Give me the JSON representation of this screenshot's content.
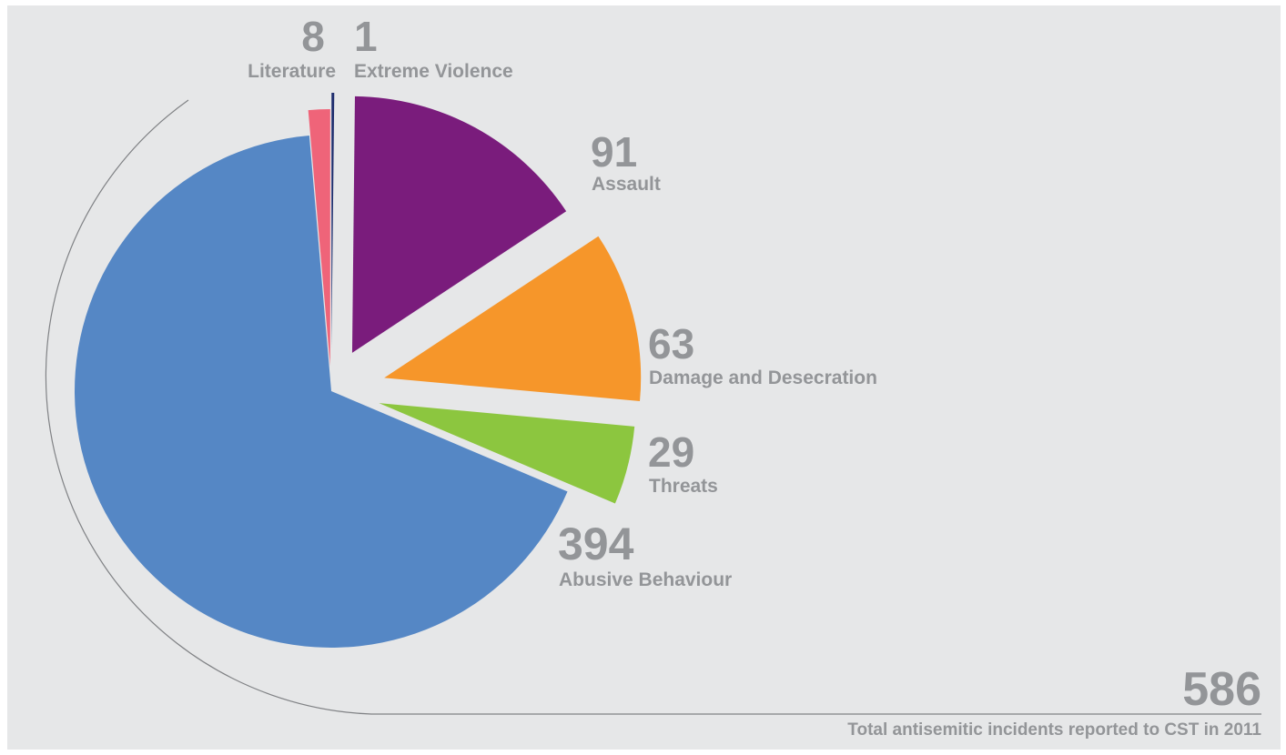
{
  "chart_data": {
    "type": "pie",
    "title": "",
    "slices": [
      {
        "label": "Extreme Violence",
        "value": 1,
        "color": "#1f2e6e"
      },
      {
        "label": "Assault",
        "value": 91,
        "color": "#7a1c7c"
      },
      {
        "label": "Damage and Desecration",
        "value": 63,
        "color": "#f6962a"
      },
      {
        "label": "Threats",
        "value": 29,
        "color": "#8cc63f"
      },
      {
        "label": "Abusive Behaviour",
        "value": 394,
        "color": "#5587c5"
      },
      {
        "label": "Literature",
        "value": 8,
        "color": "#ef6479"
      }
    ],
    "labels": {
      "extreme_violence": {
        "value": "1",
        "label": "Extreme Violence"
      },
      "literature": {
        "value": "8",
        "label": "Literature"
      },
      "assault": {
        "value": "91",
        "label": "Assault"
      },
      "damage": {
        "value": "63",
        "label": "Damage and Desecration"
      },
      "threats": {
        "value": "29",
        "label": "Threats"
      },
      "abusive": {
        "value": "394",
        "label": "Abusive Behaviour"
      }
    },
    "total": {
      "value": "586",
      "caption": "Total antisemitic incidents reported to CST in 2011"
    }
  }
}
